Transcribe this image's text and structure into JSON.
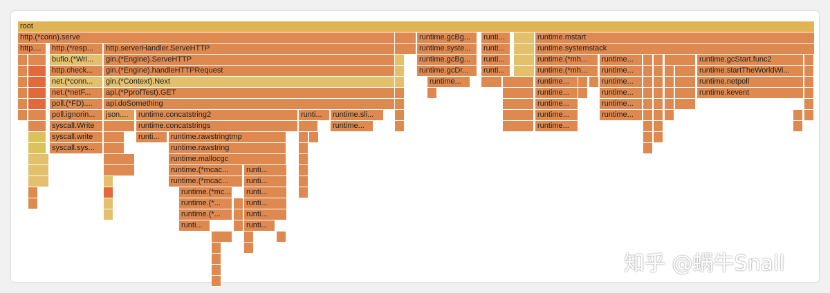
{
  "colors": {
    "gold": "#E0B455",
    "orange": "#DE8950",
    "light_orange": "#E39C57",
    "yellow": "#D9C35A",
    "pale_yellow": "#E3C06B",
    "red": "#E06A3C"
  },
  "flame": {
    "frames": [
      {
        "text": "root",
        "color": "gold"
      },
      {
        "text": "http.(*conn).serve",
        "color": "orange"
      },
      {
        "text": "runtime.gcBg...",
        "color": "orange"
      },
      {
        "text": "runti...",
        "color": "orange"
      },
      {
        "text": "runtime.mstart",
        "color": "orange"
      },
      {
        "text": "http....",
        "color": "orange"
      },
      {
        "text": "http.(*resp...",
        "color": "orange"
      },
      {
        "text": "http.serverHandler.ServeHTTP",
        "color": "orange"
      },
      {
        "text": "runtime.syste...",
        "color": "orange"
      },
      {
        "text": "runti...",
        "color": "orange"
      },
      {
        "text": "runtime.systemstack",
        "color": "orange"
      },
      {
        "text": "bufio.(*Wri...",
        "color": "pale_yellow"
      },
      {
        "text": "gin.(*Engine).ServeHTTP",
        "color": "orange"
      },
      {
        "text": "runtime.gcBg...",
        "color": "orange"
      },
      {
        "text": "runti...",
        "color": "orange"
      },
      {
        "text": "runtime.(*mh...",
        "color": "orange"
      },
      {
        "text": "runtime...",
        "color": "orange"
      },
      {
        "text": "runtime.gcStart.func2",
        "color": "orange"
      },
      {
        "text": "http.check...",
        "color": "orange"
      },
      {
        "text": "gin.(*Engine).handleHTTPRequest",
        "color": "orange"
      },
      {
        "text": "runtime.gcDr...",
        "color": "orange"
      },
      {
        "text": "runti...",
        "color": "orange"
      },
      {
        "text": "runtime.(*mh...",
        "color": "orange"
      },
      {
        "text": "runtime...",
        "color": "orange"
      },
      {
        "text": "runtime.startTheWorldWi...",
        "color": "orange"
      },
      {
        "text": "net.(*conn...",
        "color": "pale_yellow"
      },
      {
        "text": "gin.(*Context).Next",
        "color": "pale_yellow"
      },
      {
        "text": "runtime...",
        "color": "orange"
      },
      {
        "text": "runtime...",
        "color": "orange"
      },
      {
        "text": "runtime...",
        "color": "orange"
      },
      {
        "text": "runtime.netpoll",
        "color": "orange"
      },
      {
        "text": "net.(*netF...",
        "color": "orange"
      },
      {
        "text": "api.(*PprofTest).GET",
        "color": "orange"
      },
      {
        "text": "runtime...",
        "color": "orange"
      },
      {
        "text": "runtime...",
        "color": "orange"
      },
      {
        "text": "runtime.kevent",
        "color": "orange"
      },
      {
        "text": "poll.(*FD)....",
        "color": "orange"
      },
      {
        "text": "api.doSomething",
        "color": "orange"
      },
      {
        "text": "runtime...",
        "color": "orange"
      },
      {
        "text": "runtime...",
        "color": "orange"
      },
      {
        "text": "poll.ignorin...",
        "color": "orange"
      },
      {
        "text": "json....",
        "color": "light_orange"
      },
      {
        "text": "runtime.concatstring2",
        "color": "orange"
      },
      {
        "text": "runti...",
        "color": "orange"
      },
      {
        "text": "runtime.sli...",
        "color": "orange"
      },
      {
        "text": "runtime...",
        "color": "orange"
      },
      {
        "text": "runtime...",
        "color": "orange"
      },
      {
        "text": "syscall.Write",
        "color": "orange"
      },
      {
        "text": "runtime.concatstrings",
        "color": "orange"
      },
      {
        "text": "runtime...",
        "color": "orange"
      },
      {
        "text": "runtime...",
        "color": "orange"
      },
      {
        "text": "syscall.write",
        "color": "orange"
      },
      {
        "text": "runti...",
        "color": "orange"
      },
      {
        "text": "runtime.rawstringtmp",
        "color": "orange"
      },
      {
        "text": "syscall.sys...",
        "color": "orange"
      },
      {
        "text": "runtime.rawstring",
        "color": "orange"
      },
      {
        "text": "runtime.mallocgc",
        "color": "orange"
      },
      {
        "text": "runtime.(*mcac...",
        "color": "orange"
      },
      {
        "text": "runti...",
        "color": "orange"
      },
      {
        "text": "runtime.(*mcac...",
        "color": "orange"
      },
      {
        "text": "runti...",
        "color": "orange"
      },
      {
        "text": "runtime.(*mc...",
        "color": "orange"
      },
      {
        "text": "runti...",
        "color": "orange"
      },
      {
        "text": "runtime.(*...",
        "color": "orange"
      },
      {
        "text": "runti...",
        "color": "orange"
      },
      {
        "text": "runtime.(*...",
        "color": "orange"
      },
      {
        "text": "runti...",
        "color": "orange"
      },
      {
        "text": "runti...",
        "color": "orange"
      },
      {
        "text": "runti...",
        "color": "orange"
      }
    ]
  },
  "watermark": {
    "text": "知乎 @蜗牛Snail"
  }
}
